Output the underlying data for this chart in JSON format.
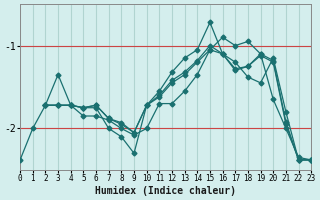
{
  "xlabel": "Humidex (Indice chaleur)",
  "ylabel": "",
  "background_color": "#d4eeed",
  "line_color": "#1a7070",
  "grid_color": "#b0d4d0",
  "hline_color": "#cc4444",
  "xlim": [
    0,
    23
  ],
  "ylim": [
    -2.5,
    -0.5
  ],
  "yticks": [
    -2,
    -1
  ],
  "xticks": [
    0,
    1,
    2,
    3,
    4,
    5,
    6,
    7,
    8,
    9,
    10,
    11,
    12,
    13,
    14,
    15,
    16,
    17,
    18,
    19,
    20,
    21,
    22,
    23
  ],
  "line1_x": [
    0,
    1,
    2,
    3,
    4,
    5,
    6,
    7,
    8,
    9,
    10,
    11,
    12,
    13,
    14,
    15,
    16,
    17,
    18,
    19,
    20,
    21,
    22,
    23
  ],
  "line1_y": [
    -2.38,
    -2.0,
    -1.72,
    -1.72,
    -1.72,
    -1.85,
    -1.85,
    -1.9,
    -2.0,
    -2.08,
    -2.0,
    -1.7,
    -1.7,
    -1.55,
    -1.35,
    -1.05,
    -0.9,
    -1.0,
    -0.95,
    -1.1,
    -1.65,
    -2.0,
    -2.35,
    -2.38
  ],
  "line2_x": [
    2,
    3,
    4,
    5,
    6,
    7,
    8,
    9,
    10,
    11,
    12,
    13,
    14,
    15,
    16,
    17,
    18,
    19,
    20,
    21,
    22,
    23
  ],
  "line2_y": [
    -1.72,
    -1.35,
    -1.72,
    -1.75,
    -1.75,
    -2.0,
    -2.1,
    -2.3,
    -1.72,
    -1.55,
    -1.32,
    -1.15,
    -1.05,
    -0.72,
    -1.1,
    -1.2,
    -1.38,
    -1.45,
    -1.15,
    -1.8,
    -2.38,
    -2.38
  ],
  "line3_x": [
    2,
    3,
    4,
    5,
    6,
    7,
    8,
    9,
    10,
    11,
    12,
    13,
    14,
    15,
    16,
    17,
    18,
    19,
    20,
    21,
    22,
    23
  ],
  "line3_y": [
    -1.72,
    -1.72,
    -1.72,
    -1.75,
    -1.72,
    -1.88,
    -1.95,
    -2.05,
    -1.72,
    -1.62,
    -1.45,
    -1.35,
    -1.2,
    -1.05,
    -1.1,
    -1.3,
    -1.25,
    -1.12,
    -1.2,
    -1.95,
    -2.38,
    -2.38
  ],
  "line4_x": [
    2,
    3,
    4,
    5,
    6,
    7,
    8,
    9,
    10,
    11,
    12,
    13,
    14,
    15,
    16,
    17,
    18,
    19,
    20,
    21,
    22,
    23
  ],
  "line4_y": [
    -1.72,
    -1.72,
    -1.72,
    -1.75,
    -1.72,
    -1.88,
    -1.93,
    -2.05,
    -1.72,
    -1.6,
    -1.42,
    -1.32,
    -1.18,
    -1.0,
    -1.1,
    -1.28,
    -1.25,
    -1.1,
    -1.18,
    -1.92,
    -2.38,
    -2.38
  ]
}
